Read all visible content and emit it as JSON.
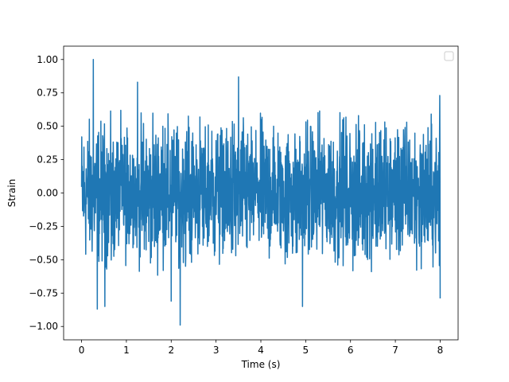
{
  "chart_data": {
    "type": "line",
    "xlabel": "Time (s)",
    "ylabel": "Strain",
    "xlim": [
      -0.4,
      8.4
    ],
    "ylim": [
      -1.1,
      1.1
    ],
    "x_ticks": [
      0,
      1,
      2,
      3,
      4,
      5,
      6,
      7,
      8
    ],
    "x_tick_labels": [
      "0",
      "1",
      "2",
      "3",
      "4",
      "5",
      "6",
      "7",
      "8"
    ],
    "y_ticks": [
      -1.0,
      -0.75,
      -0.5,
      -0.25,
      0.0,
      0.25,
      0.5,
      0.75,
      1.0
    ],
    "y_tick_labels": [
      "−1.00",
      "−0.75",
      "−0.50",
      "−0.25",
      "0.00",
      "0.25",
      "0.50",
      "0.75",
      "1.00"
    ],
    "grid": false,
    "legend": {
      "placement": "top-right",
      "entries": []
    },
    "series": [
      {
        "color": "#1f77b4",
        "x_start": 0,
        "x_end": 8,
        "typical_amplitude": 0.45,
        "peaks": [
          {
            "x": 0.26,
            "y": 1.0
          },
          {
            "x": 1.25,
            "y": 0.83
          },
          {
            "x": 2.2,
            "y": 0.88
          },
          {
            "x": 3.5,
            "y": 0.87
          },
          {
            "x": 2.2,
            "y": -0.99
          },
          {
            "x": 2.0,
            "y": -0.81
          },
          {
            "x": 4.93,
            "y": -0.85
          },
          {
            "x": 0.52,
            "y": -0.85
          },
          {
            "x": 0.35,
            "y": -0.87
          },
          {
            "x": 8.0,
            "y": -0.79
          },
          {
            "x": 7.99,
            "y": 0.73
          }
        ]
      }
    ]
  }
}
